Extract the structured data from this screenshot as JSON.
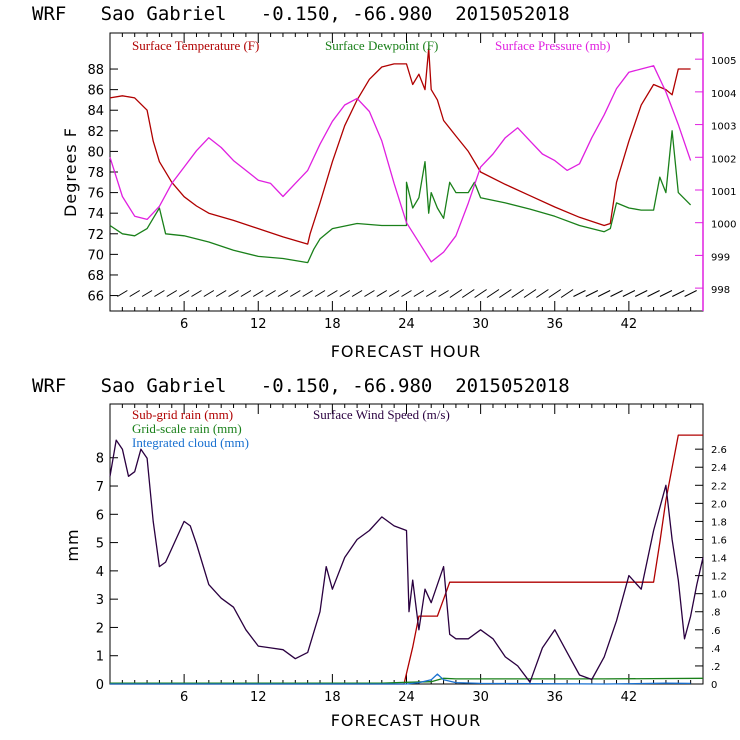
{
  "chart_data": [
    {
      "type": "line",
      "title": "WRF   Sao Gabriel   -0.150, -66.980  2015052018",
      "xlabel": "FORECAST HOUR",
      "ylabel": "Degrees F",
      "y2label": "",
      "xlim": [
        0,
        48
      ],
      "ylim": [
        64.5,
        91.5
      ],
      "y2lim": [
        997.3,
        1005.8
      ],
      "x_ticks": [
        6,
        12,
        18,
        24,
        30,
        36,
        42
      ],
      "x_tick_labels": [
        "6",
        "12",
        "18",
        "24",
        "30",
        "36",
        "42"
      ],
      "y_ticks": [
        66,
        68,
        70,
        72,
        74,
        76,
        78,
        80,
        82,
        84,
        86,
        88
      ],
      "y_tick_labels": [
        "66",
        "68",
        "70",
        "72",
        "74",
        "76",
        "78",
        "80",
        "82",
        "84",
        "86",
        "88"
      ],
      "y2_ticks": [
        998,
        999,
        1000,
        1001,
        1002,
        1003,
        1004,
        1005
      ],
      "y2_tick_labels": [
        "998",
        "999",
        "1000",
        "1001",
        "1002",
        "1003",
        "1004",
        "1005"
      ],
      "series": [
        {
          "name": "Surface Temperature (F)",
          "color": "#b00000",
          "axis": "left",
          "points": [
            [
              0,
              85.2
            ],
            [
              1,
              85.4
            ],
            [
              2,
              85.2
            ],
            [
              3,
              84
            ],
            [
              3.5,
              81
            ],
            [
              4,
              79
            ],
            [
              5,
              77
            ],
            [
              6,
              75.6
            ],
            [
              7,
              74.7
            ],
            [
              8,
              74
            ],
            [
              10,
              73.3
            ],
            [
              12,
              72.5
            ],
            [
              14,
              71.7
            ],
            [
              16,
              71
            ],
            [
              16.2,
              72
            ],
            [
              17,
              75
            ],
            [
              18,
              79
            ],
            [
              19,
              82.5
            ],
            [
              20,
              85
            ],
            [
              21,
              87
            ],
            [
              22,
              88.2
            ],
            [
              23,
              88.5
            ],
            [
              24,
              88.5
            ],
            [
              24.5,
              86.5
            ],
            [
              25,
              87.5
            ],
            [
              25.5,
              86
            ],
            [
              25.8,
              90
            ],
            [
              26,
              86
            ],
            [
              26.5,
              85
            ],
            [
              27,
              83
            ],
            [
              28,
              81.5
            ],
            [
              29,
              80
            ],
            [
              30,
              78
            ],
            [
              32,
              76.8
            ],
            [
              34,
              75.7
            ],
            [
              36,
              74.6
            ],
            [
              38,
              73.6
            ],
            [
              40,
              72.8
            ],
            [
              40.5,
              73
            ],
            [
              41,
              77
            ],
            [
              42,
              81
            ],
            [
              43,
              84.5
            ],
            [
              44,
              86.5
            ],
            [
              45,
              86
            ],
            [
              45.5,
              85.5
            ],
            [
              46,
              88
            ],
            [
              47,
              88
            ]
          ]
        },
        {
          "name": "Surface Dewpoint (F)",
          "color": "#1a801a",
          "axis": "left",
          "points": [
            [
              0,
              72.8
            ],
            [
              1,
              72
            ],
            [
              2,
              71.8
            ],
            [
              3,
              72.5
            ],
            [
              3.5,
              73.5
            ],
            [
              4,
              74.5
            ],
            [
              4.5,
              72
            ],
            [
              6,
              71.8
            ],
            [
              8,
              71.2
            ],
            [
              10,
              70.4
            ],
            [
              12,
              69.8
            ],
            [
              14,
              69.6
            ],
            [
              16,
              69.2
            ],
            [
              16.5,
              70.5
            ],
            [
              17,
              71.5
            ],
            [
              18,
              72.5
            ],
            [
              20,
              73
            ],
            [
              22,
              72.8
            ],
            [
              24,
              72.8
            ],
            [
              24,
              77
            ],
            [
              24.5,
              74.5
            ],
            [
              25,
              75.5
            ],
            [
              25.5,
              79
            ],
            [
              25.8,
              74
            ],
            [
              26,
              76
            ],
            [
              26.5,
              74.5
            ],
            [
              27,
              73.5
            ],
            [
              27.5,
              77
            ],
            [
              28,
              76
            ],
            [
              29,
              76
            ],
            [
              29.5,
              77
            ],
            [
              30,
              75.5
            ],
            [
              32,
              75
            ],
            [
              34,
              74.4
            ],
            [
              36,
              73.7
            ],
            [
              38,
              72.8
            ],
            [
              40,
              72.2
            ],
            [
              40.5,
              72.5
            ],
            [
              41,
              75
            ],
            [
              42,
              74.5
            ],
            [
              43,
              74.3
            ],
            [
              44,
              74.3
            ],
            [
              44.5,
              77.5
            ],
            [
              45,
              76
            ],
            [
              45.5,
              82
            ],
            [
              46,
              76
            ],
            [
              47,
              74.8
            ]
          ]
        },
        {
          "name": "Surface Pressure (mb)",
          "color": "#e020e0",
          "axis": "right",
          "points": [
            [
              0,
              1002
            ],
            [
              1,
              1000.8
            ],
            [
              2,
              1000.2
            ],
            [
              3,
              1000.1
            ],
            [
              4,
              1000.5
            ],
            [
              5,
              1001.2
            ],
            [
              6,
              1001.7
            ],
            [
              7,
              1002.2
            ],
            [
              8,
              1002.6
            ],
            [
              9,
              1002.3
            ],
            [
              10,
              1001.9
            ],
            [
              11,
              1001.6
            ],
            [
              12,
              1001.3
            ],
            [
              13,
              1001.2
            ],
            [
              14,
              1000.8
            ],
            [
              15,
              1001.2
            ],
            [
              16,
              1001.6
            ],
            [
              17,
              1002.4
            ],
            [
              18,
              1003.1
            ],
            [
              19,
              1003.6
            ],
            [
              20,
              1003.8
            ],
            [
              21,
              1003.4
            ],
            [
              22,
              1002.5
            ],
            [
              23,
              1001.2
            ],
            [
              24,
              1000
            ],
            [
              25,
              999.4
            ],
            [
              26,
              998.8
            ],
            [
              27,
              999.1
            ],
            [
              28,
              999.6
            ],
            [
              29,
              1000.6
            ],
            [
              30,
              1001.7
            ],
            [
              31,
              1002.1
            ],
            [
              32,
              1002.6
            ],
            [
              33,
              1002.9
            ],
            [
              34,
              1002.5
            ],
            [
              35,
              1002.1
            ],
            [
              36,
              1001.9
            ],
            [
              37,
              1001.6
            ],
            [
              38,
              1001.8
            ],
            [
              39,
              1002.6
            ],
            [
              40,
              1003.3
            ],
            [
              41,
              1004.1
            ],
            [
              42,
              1004.6
            ],
            [
              43,
              1004.7
            ],
            [
              44,
              1004.8
            ],
            [
              45,
              1004
            ],
            [
              46,
              1003
            ],
            [
              47,
              1001.9
            ]
          ]
        }
      ],
      "wind_barbs": "hourly wind barbs along bottom at 66 F"
    },
    {
      "type": "line",
      "title": "WRF   Sao Gabriel   -0.150, -66.980  2015052018",
      "xlabel": "FORECAST HOUR",
      "ylabel": "mm",
      "xlim": [
        0,
        48
      ],
      "ylim": [
        0,
        9.9
      ],
      "y2lim": [
        0,
        3.1
      ],
      "x_ticks": [
        6,
        12,
        18,
        24,
        30,
        36,
        42
      ],
      "x_tick_labels": [
        "6",
        "12",
        "18",
        "24",
        "30",
        "36",
        "42"
      ],
      "y_ticks": [
        0,
        1,
        2,
        3,
        4,
        5,
        6,
        7,
        8
      ],
      "y_tick_labels": [
        "0",
        "1",
        "2",
        "3",
        "4",
        "5",
        "6",
        "7",
        "8"
      ],
      "y2_ticks": [
        0,
        0.2,
        0.4,
        0.6,
        0.8,
        1.0,
        1.2,
        1.4,
        1.6,
        1.8,
        2.0,
        2.2,
        2.4,
        2.6
      ],
      "y2_tick_labels": [
        "0",
        ".2",
        ".4",
        ".6",
        ".8",
        "1.0",
        "1.2",
        "1.4",
        "1.6",
        "1.8",
        "2.0",
        "2.2",
        "2.4",
        "2.6"
      ],
      "series": [
        {
          "name": "Sub-grid rain (mm)",
          "color": "#b00000",
          "axis": "left",
          "points": [
            [
              0,
              0
            ],
            [
              23.8,
              0
            ],
            [
              24.5,
              1.3
            ],
            [
              25,
              2.4
            ],
            [
              26.5,
              2.4
            ],
            [
              27,
              3
            ],
            [
              27.5,
              3.6
            ],
            [
              31,
              3.6
            ],
            [
              40,
              3.6
            ],
            [
              44,
              3.6
            ],
            [
              44.5,
              5
            ],
            [
              45,
              6.5
            ],
            [
              46,
              8.8
            ],
            [
              48,
              8.8
            ]
          ]
        },
        {
          "name": "Grid-scale rain (mm)",
          "color": "#1a801a",
          "axis": "left",
          "points": [
            [
              0,
              0.03
            ],
            [
              22,
              0.03
            ],
            [
              24,
              0.06
            ],
            [
              26,
              0.08
            ],
            [
              27,
              0.2
            ],
            [
              28,
              0.18
            ],
            [
              30,
              0.18
            ],
            [
              40,
              0.18
            ],
            [
              48,
              0.2
            ]
          ]
        },
        {
          "name": "Integrated cloud (mm)",
          "color": "#1870d0",
          "axis": "left",
          "points": [
            [
              0,
              0
            ],
            [
              24,
              0
            ],
            [
              25,
              0.05
            ],
            [
              26,
              0.15
            ],
            [
              26.5,
              0.35
            ],
            [
              27,
              0.15
            ],
            [
              28,
              0.05
            ],
            [
              30,
              0.02
            ],
            [
              40,
              0
            ],
            [
              45,
              0.03
            ],
            [
              47,
              0.02
            ]
          ]
        },
        {
          "name": "Surface Wind Speed (m/s)",
          "color": "#2a0040",
          "axis": "right",
          "points": [
            [
              0,
              2.3
            ],
            [
              0.5,
              2.7
            ],
            [
              1,
              2.6
            ],
            [
              1.5,
              2.3
            ],
            [
              2,
              2.35
            ],
            [
              2.5,
              2.6
            ],
            [
              3,
              2.5
            ],
            [
              3.5,
              1.8
            ],
            [
              4,
              1.3
            ],
            [
              4.5,
              1.35
            ],
            [
              5,
              1.5
            ],
            [
              6,
              1.8
            ],
            [
              6.5,
              1.75
            ],
            [
              7,
              1.55
            ],
            [
              8,
              1.1
            ],
            [
              9,
              0.95
            ],
            [
              10,
              0.85
            ],
            [
              11,
              0.6
            ],
            [
              12,
              0.42
            ],
            [
              13,
              0.4
            ],
            [
              14,
              0.38
            ],
            [
              15,
              0.28
            ],
            [
              16,
              0.35
            ],
            [
              17,
              0.8
            ],
            [
              17.5,
              1.3
            ],
            [
              18,
              1.05
            ],
            [
              19,
              1.4
            ],
            [
              20,
              1.6
            ],
            [
              21,
              1.7
            ],
            [
              22,
              1.85
            ],
            [
              23,
              1.75
            ],
            [
              24,
              1.7
            ],
            [
              24.2,
              0.8
            ],
            [
              24.5,
              1.15
            ],
            [
              25,
              0.6
            ],
            [
              25.5,
              1.05
            ],
            [
              26,
              0.9
            ],
            [
              26.5,
              1.1
            ],
            [
              27,
              1.3
            ],
            [
              27.5,
              0.55
            ],
            [
              28,
              0.5
            ],
            [
              29,
              0.5
            ],
            [
              30,
              0.6
            ],
            [
              31,
              0.5
            ],
            [
              32,
              0.3
            ],
            [
              33,
              0.2
            ],
            [
              34,
              0.02
            ],
            [
              35,
              0.4
            ],
            [
              36,
              0.6
            ],
            [
              37,
              0.35
            ],
            [
              38,
              0.1
            ],
            [
              39,
              0.05
            ],
            [
              40,
              0.3
            ],
            [
              41,
              0.7
            ],
            [
              42,
              1.2
            ],
            [
              43,
              1.05
            ],
            [
              44,
              1.7
            ],
            [
              45,
              2.2
            ],
            [
              45.5,
              1.6
            ],
            [
              46,
              1.15
            ],
            [
              46.5,
              0.5
            ],
            [
              47,
              0.75
            ],
            [
              47.5,
              1.1
            ],
            [
              48,
              1.4
            ]
          ]
        }
      ]
    }
  ]
}
